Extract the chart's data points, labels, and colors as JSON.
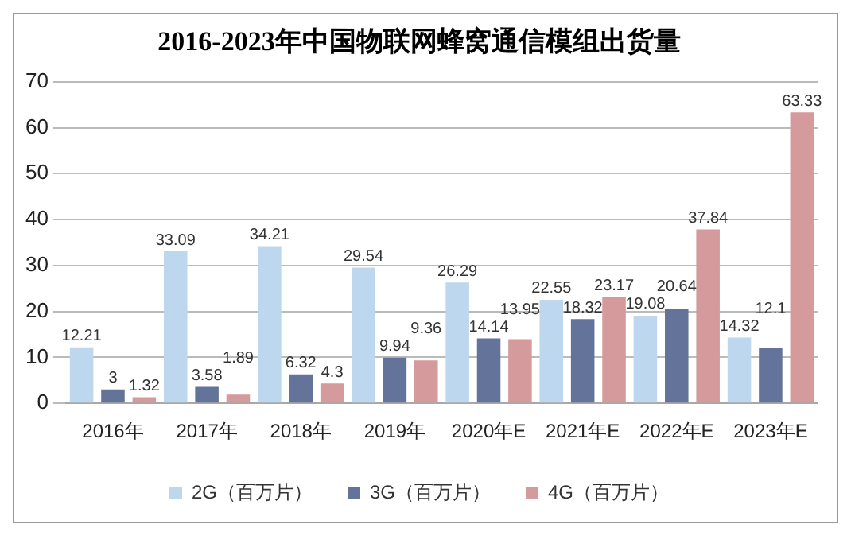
{
  "chart_data": {
    "type": "bar",
    "title": "2016-2023年中国物联网蜂窝通信模组出货量",
    "categories": [
      "2016年",
      "2017年",
      "2018年",
      "2019年",
      "2020年E",
      "2021年E",
      "2022年E",
      "2023年E"
    ],
    "series": [
      {
        "name": "2G（百万片）",
        "color": "#bdd7ee",
        "values": [
          12.21,
          33.09,
          34.21,
          29.54,
          26.29,
          22.55,
          19.08,
          14.32
        ]
      },
      {
        "name": "3G（百万片）",
        "color": "#647399",
        "values": [
          3,
          3.58,
          6.32,
          9.94,
          14.14,
          18.32,
          20.64,
          12.1
        ]
      },
      {
        "name": "4G（百万片）",
        "color": "#d49a9c",
        "values": [
          1.32,
          1.89,
          4.3,
          9.36,
          13.95,
          23.17,
          37.84,
          63.33
        ]
      }
    ],
    "ylim": [
      0,
      70
    ],
    "yticks": [
      0,
      10,
      20,
      30,
      40,
      50,
      60,
      70
    ],
    "grid": "y",
    "legend": "bottom",
    "data_labels": true
  }
}
